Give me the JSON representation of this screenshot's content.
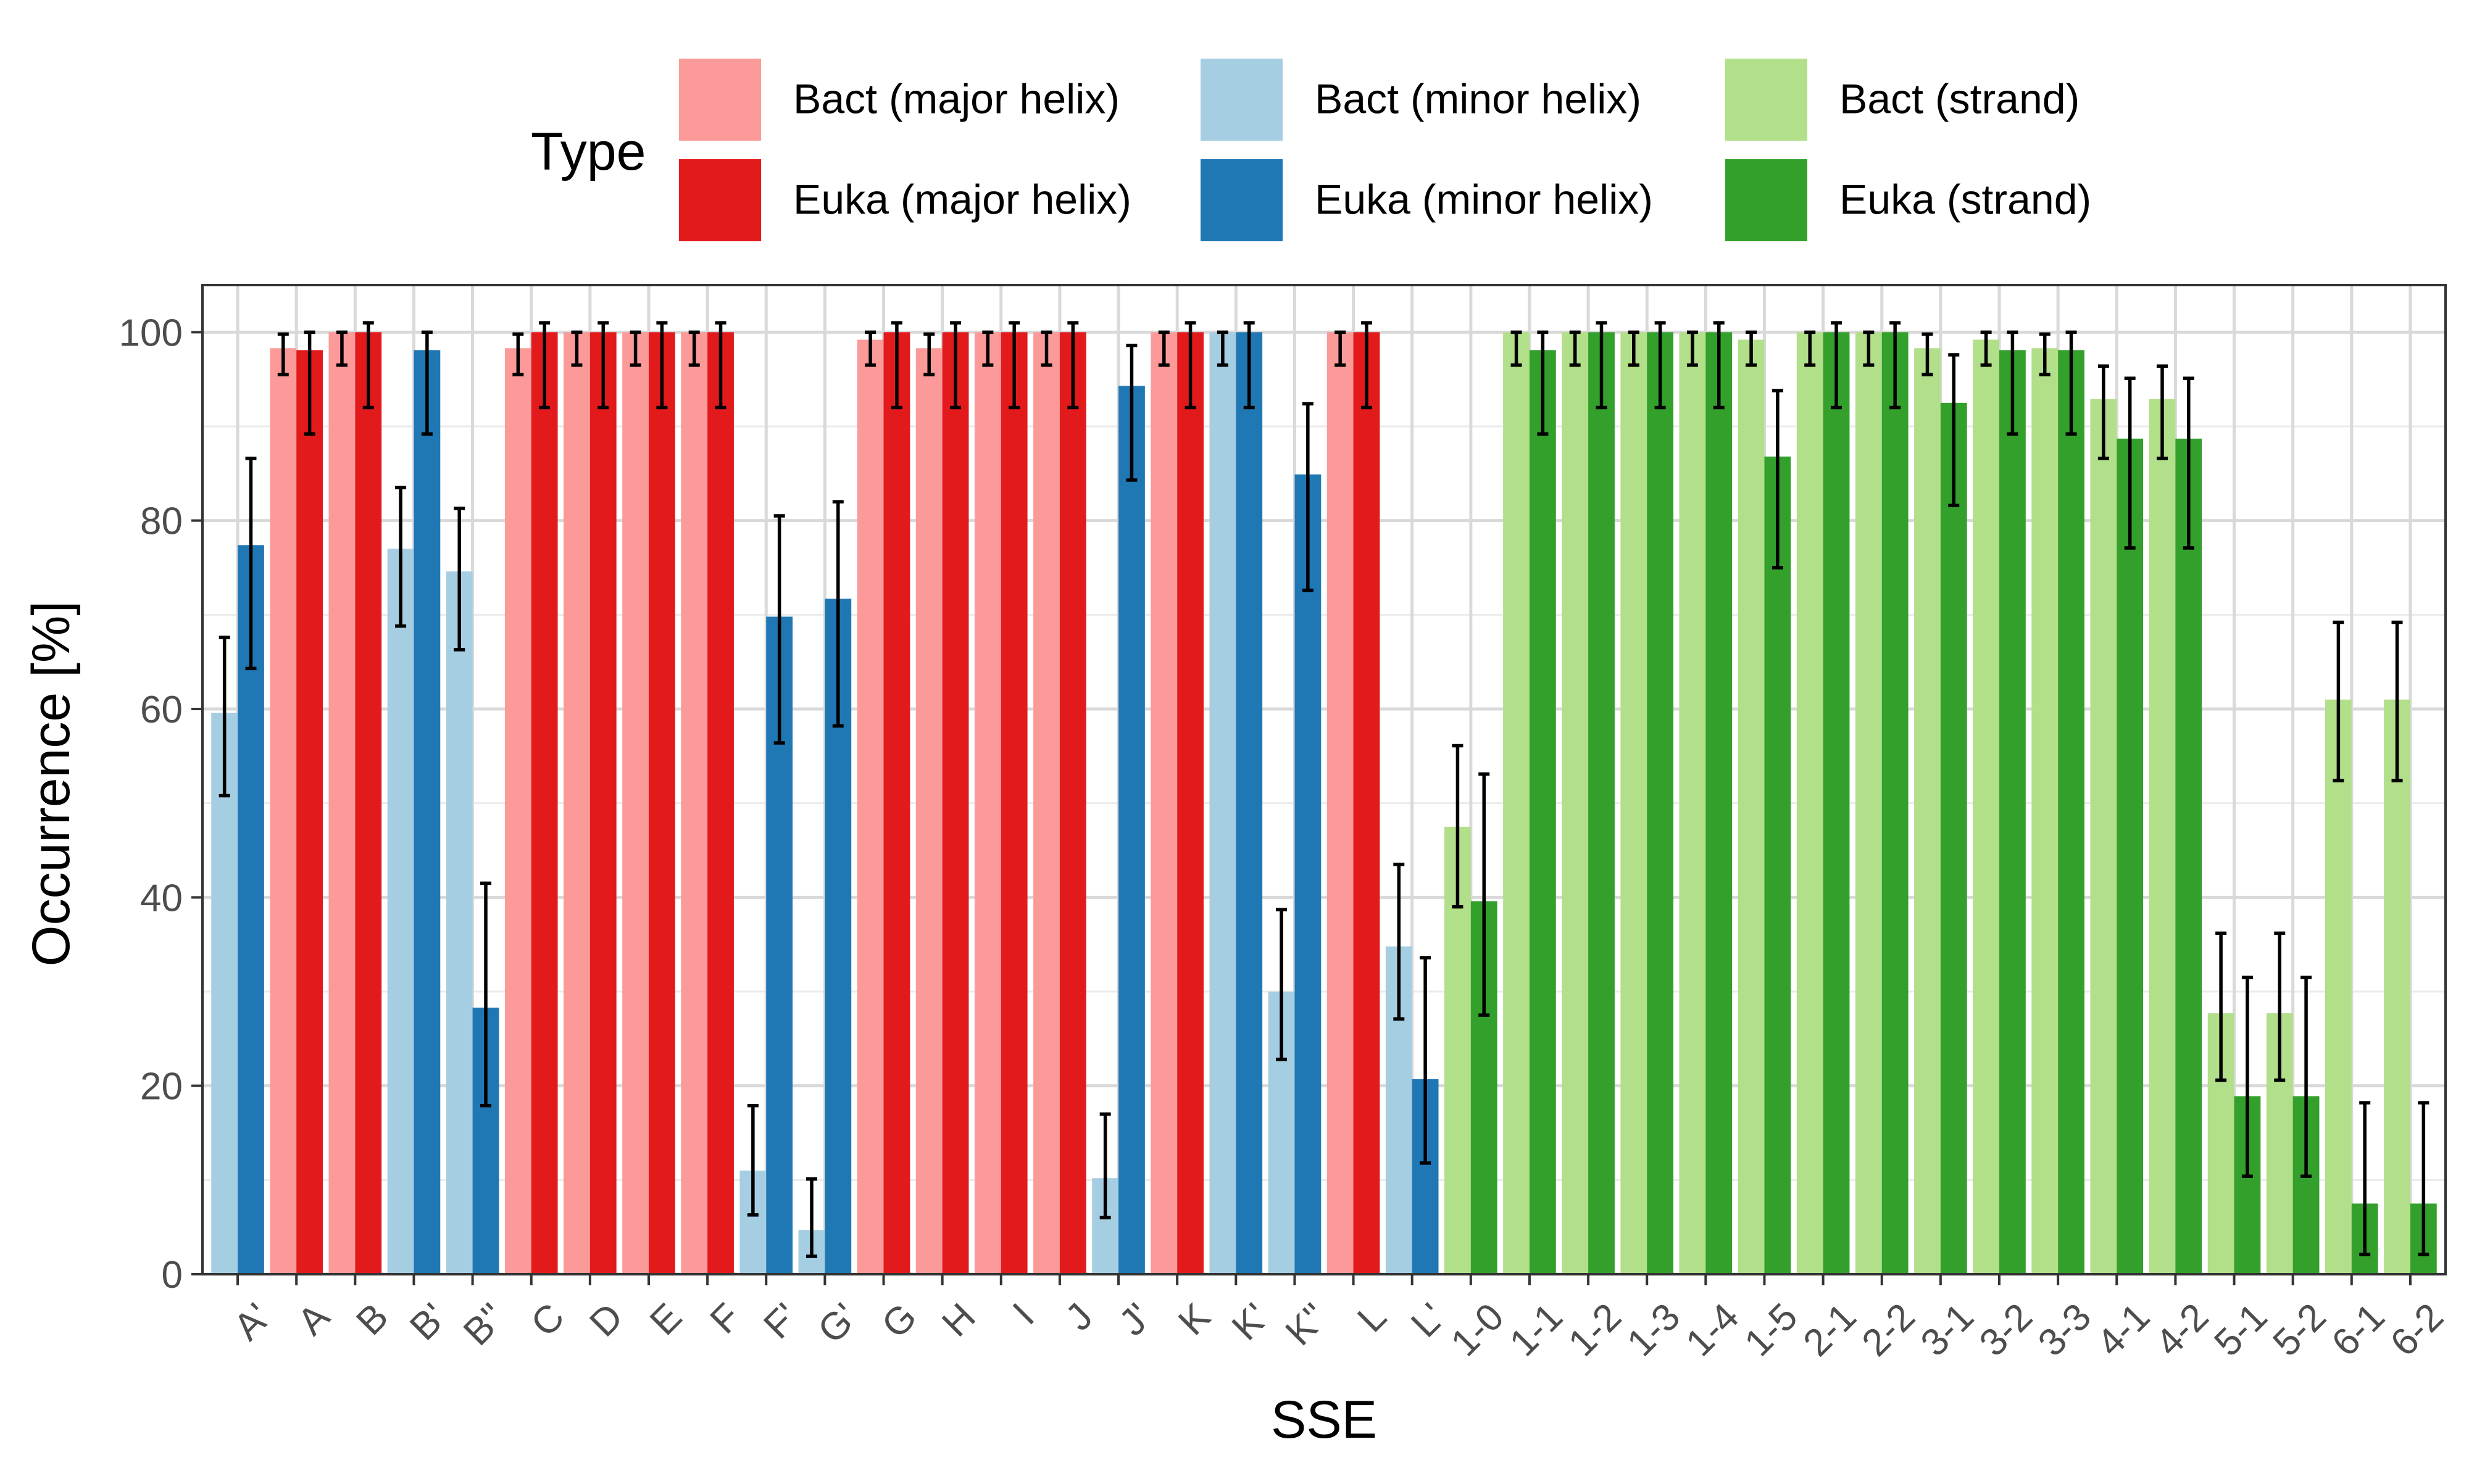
{
  "chart_data": {
    "type": "bar",
    "xlabel": "SSE",
    "ylabel": "Occurrence [%]",
    "ylim": [
      0,
      105
    ],
    "yticks": [
      0,
      20,
      40,
      60,
      80,
      100
    ],
    "grid": true,
    "legend": {
      "title": "Type",
      "placement": "top",
      "entries": [
        {
          "label": "Bact (major helix)",
          "color": "#FB9A99"
        },
        {
          "label": "Euka (major helix)",
          "color": "#E31A1C"
        },
        {
          "label": "Bact (minor helix)",
          "color": "#A6CEE3"
        },
        {
          "label": "Euka (minor helix)",
          "color": "#1F78B4"
        },
        {
          "label": "Bact (strand)",
          "color": "#B2DF8A"
        },
        {
          "label": "Euka (strand)",
          "color": "#33A02C"
        }
      ]
    },
    "colors": {
      "major": {
        "bact": "#FB9A99",
        "euka": "#E31A1C"
      },
      "minor": {
        "bact": "#A6CEE3",
        "euka": "#1F78B4"
      },
      "strand": {
        "bact": "#B2DF8A",
        "euka": "#33A02C"
      }
    },
    "categories": [
      {
        "label": "A'",
        "group": "minor",
        "bact": [
          59.6,
          50.8,
          67.6
        ],
        "euka": [
          77.4,
          64.3,
          86.6
        ]
      },
      {
        "label": "A",
        "group": "major",
        "bact": [
          98.3,
          95.5,
          99.8
        ],
        "euka": [
          98.1,
          89.2,
          100
        ]
      },
      {
        "label": "B",
        "group": "major",
        "bact": [
          100,
          96.5,
          100
        ],
        "euka": [
          100,
          92,
          101
        ]
      },
      {
        "label": "B'",
        "group": "minor",
        "bact": [
          77.0,
          68.8,
          83.5
        ],
        "euka": [
          98.1,
          89.2,
          100
        ]
      },
      {
        "label": "B''",
        "group": "minor",
        "bact": [
          74.6,
          66.3,
          81.3
        ],
        "euka": [
          28.3,
          17.9,
          41.5
        ]
      },
      {
        "label": "C",
        "group": "major",
        "bact": [
          98.3,
          95.5,
          99.8
        ],
        "euka": [
          100,
          92,
          101
        ]
      },
      {
        "label": "D",
        "group": "major",
        "bact": [
          100,
          96.5,
          100
        ],
        "euka": [
          100,
          92,
          101
        ]
      },
      {
        "label": "E",
        "group": "major",
        "bact": [
          100,
          96.5,
          100
        ],
        "euka": [
          100,
          92,
          101
        ]
      },
      {
        "label": "F",
        "group": "major",
        "bact": [
          100,
          96.5,
          100
        ],
        "euka": [
          100,
          92,
          101
        ]
      },
      {
        "label": "F'",
        "group": "minor",
        "bact": [
          11.0,
          6.3,
          17.9
        ],
        "euka": [
          69.8,
          56.4,
          80.5
        ]
      },
      {
        "label": "G'",
        "group": "minor",
        "bact": [
          4.7,
          1.9,
          10.1
        ],
        "euka": [
          71.7,
          58.2,
          82.0
        ]
      },
      {
        "label": "G",
        "group": "major",
        "bact": [
          99.2,
          96.5,
          100
        ],
        "euka": [
          100,
          92,
          101
        ]
      },
      {
        "label": "H",
        "group": "major",
        "bact": [
          98.3,
          95.5,
          99.8
        ],
        "euka": [
          100,
          92,
          101
        ]
      },
      {
        "label": "I",
        "group": "major",
        "bact": [
          100,
          96.5,
          100
        ],
        "euka": [
          100,
          92,
          101
        ]
      },
      {
        "label": "J",
        "group": "major",
        "bact": [
          100,
          96.5,
          100
        ],
        "euka": [
          100,
          92,
          101
        ]
      },
      {
        "label": "J'",
        "group": "minor",
        "bact": [
          10.2,
          6.0,
          17.0
        ],
        "euka": [
          94.3,
          84.3,
          98.6
        ]
      },
      {
        "label": "K",
        "group": "major",
        "bact": [
          100,
          96.5,
          100
        ],
        "euka": [
          100,
          92,
          101
        ]
      },
      {
        "label": "K'",
        "group": "minor",
        "bact": [
          100,
          96.5,
          100
        ],
        "euka": [
          100,
          92,
          101
        ]
      },
      {
        "label": "K''",
        "group": "minor",
        "bact": [
          30.0,
          22.8,
          38.7
        ],
        "euka": [
          84.9,
          72.6,
          92.4
        ]
      },
      {
        "label": "L",
        "group": "major",
        "bact": [
          100,
          96.5,
          100
        ],
        "euka": [
          100,
          92,
          101
        ]
      },
      {
        "label": "L'",
        "group": "minor",
        "bact": [
          34.8,
          27.1,
          43.5
        ],
        "euka": [
          20.7,
          11.8,
          33.6
        ]
      },
      {
        "label": "1-0",
        "group": "strand",
        "bact": [
          47.5,
          39.0,
          56.1
        ],
        "euka": [
          39.6,
          27.5,
          53.1
        ]
      },
      {
        "label": "1-1",
        "group": "strand",
        "bact": [
          100,
          96.5,
          100
        ],
        "euka": [
          98.1,
          89.2,
          100
        ]
      },
      {
        "label": "1-2",
        "group": "strand",
        "bact": [
          100,
          96.5,
          100
        ],
        "euka": [
          100,
          92,
          101
        ]
      },
      {
        "label": "1-3",
        "group": "strand",
        "bact": [
          100,
          96.5,
          100
        ],
        "euka": [
          100,
          92,
          101
        ]
      },
      {
        "label": "1-4",
        "group": "strand",
        "bact": [
          100,
          96.5,
          100
        ],
        "euka": [
          100,
          92,
          101
        ]
      },
      {
        "label": "1-5",
        "group": "strand",
        "bact": [
          99.2,
          96.5,
          100
        ],
        "euka": [
          86.8,
          75.0,
          93.8
        ]
      },
      {
        "label": "2-1",
        "group": "strand",
        "bact": [
          100,
          96.5,
          100
        ],
        "euka": [
          100,
          92,
          101
        ]
      },
      {
        "label": "2-2",
        "group": "strand",
        "bact": [
          100,
          96.5,
          100
        ],
        "euka": [
          100,
          92,
          101
        ]
      },
      {
        "label": "3-1",
        "group": "strand",
        "bact": [
          98.3,
          95.5,
          99.8
        ],
        "euka": [
          92.5,
          81.6,
          97.6
        ]
      },
      {
        "label": "3-2",
        "group": "strand",
        "bact": [
          99.2,
          96.5,
          100
        ],
        "euka": [
          98.1,
          89.2,
          100
        ]
      },
      {
        "label": "3-3",
        "group": "strand",
        "bact": [
          98.3,
          95.5,
          99.8
        ],
        "euka": [
          98.1,
          89.2,
          100
        ]
      },
      {
        "label": "4-1",
        "group": "strand",
        "bact": [
          92.9,
          86.6,
          96.4
        ],
        "euka": [
          88.7,
          77.1,
          95.1
        ]
      },
      {
        "label": "4-2",
        "group": "strand",
        "bact": [
          92.9,
          86.6,
          96.4
        ],
        "euka": [
          88.7,
          77.1,
          95.1
        ]
      },
      {
        "label": "5-1",
        "group": "strand",
        "bact": [
          27.7,
          20.6,
          36.2
        ],
        "euka": [
          18.9,
          10.4,
          31.5
        ]
      },
      {
        "label": "5-2",
        "group": "strand",
        "bact": [
          27.7,
          20.6,
          36.2
        ],
        "euka": [
          18.9,
          10.4,
          31.5
        ]
      },
      {
        "label": "6-1",
        "group": "strand",
        "bact": [
          61.0,
          52.4,
          69.2
        ],
        "euka": [
          7.5,
          2.1,
          18.2
        ]
      },
      {
        "label": "6-2",
        "group": "strand",
        "bact": [
          61.0,
          52.4,
          69.2
        ],
        "euka": [
          7.5,
          2.1,
          18.2
        ]
      }
    ]
  }
}
